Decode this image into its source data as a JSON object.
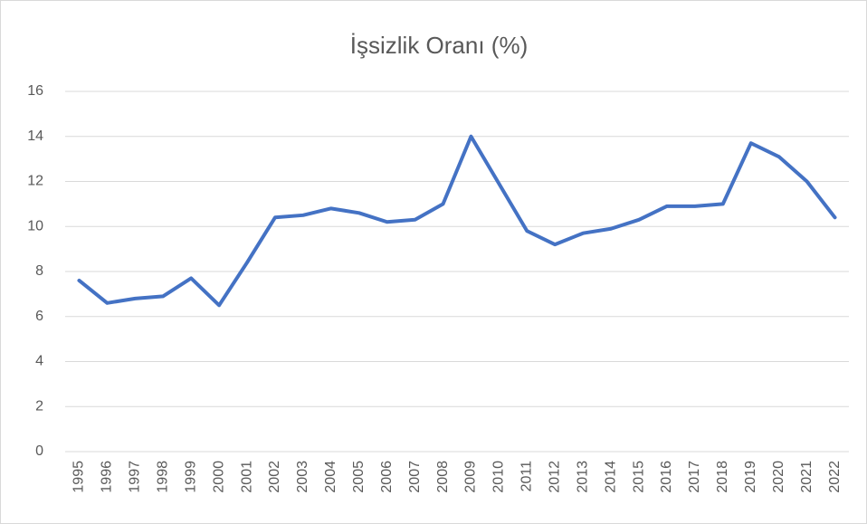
{
  "chart_data": {
    "type": "line",
    "title": "İşsizlik Oranı (%)",
    "categories": [
      "1995",
      "1996",
      "1997",
      "1998",
      "1999",
      "2000",
      "2001",
      "2002",
      "2003",
      "2004",
      "2005",
      "2006",
      "2007",
      "2008",
      "2009",
      "2010",
      "2011",
      "2012",
      "2013",
      "2014",
      "2015",
      "2016",
      "2017",
      "2018",
      "2019",
      "2020",
      "2021",
      "2022"
    ],
    "series": [
      {
        "name": "İşsizlik Oranı (%)",
        "color": "#4472c4",
        "values": [
          7.6,
          6.6,
          6.8,
          6.9,
          7.7,
          6.5,
          8.4,
          10.4,
          10.5,
          10.8,
          10.6,
          10.2,
          10.3,
          11.0,
          14.0,
          11.9,
          9.8,
          9.2,
          9.7,
          9.9,
          10.3,
          10.9,
          10.9,
          11.0,
          13.7,
          13.1,
          12.0,
          10.4
        ]
      }
    ],
    "ylim": [
      0,
      16
    ],
    "yticks": [
      0,
      2,
      4,
      6,
      8,
      10,
      12,
      14,
      16
    ],
    "grid": true
  }
}
